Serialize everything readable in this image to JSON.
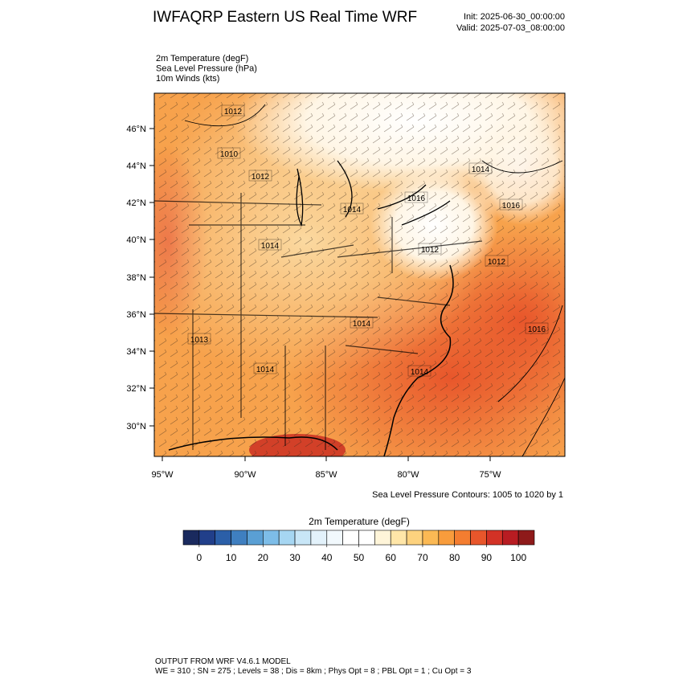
{
  "header": {
    "title": "IWFAQRP Eastern US Real Time WRF",
    "init": "Init: 2025-06-30_00:00:00",
    "valid": "Valid: 2025-07-03_08:00:00"
  },
  "fields": [
    "2m Temperature   (degF)",
    "Sea Level Pressure   (hPa)",
    "10m Winds   (kts)"
  ],
  "map": {
    "lat_labels": [
      "46°N",
      "44°N",
      "42°N",
      "40°N",
      "38°N",
      "36°N",
      "34°N",
      "32°N",
      "30°N"
    ],
    "lon_labels": [
      "95°W",
      "90°W",
      "85°W",
      "80°W",
      "75°W"
    ],
    "contour_labels": [
      "1012",
      "1010",
      "1012",
      "1014",
      "1014",
      "1016",
      "1016",
      "1012",
      "1012",
      "1016",
      "1013",
      "1014",
      "1014",
      "1014",
      "1014"
    ],
    "contour_note": "Sea Level Pressure Contours: 1005 to 1020 by 1"
  },
  "colorbar": {
    "title": "2m Temperature  (degF)",
    "lim": [
      -5,
      105
    ],
    "ticks": [
      0,
      10,
      20,
      30,
      40,
      50,
      60,
      70,
      80,
      90,
      100
    ],
    "colors": [
      "#1a2a5e",
      "#213f8a",
      "#2b5fa8",
      "#3f7fc0",
      "#5a9fd4",
      "#7dbde8",
      "#a6d6f2",
      "#c8e6f7",
      "#e3f2fb",
      "#f2f9fd",
      "#ffffff",
      "#ffffff",
      "#fff5d9",
      "#ffe6a8",
      "#fdd27e",
      "#fbb954",
      "#f89c3c",
      "#f47d30",
      "#e8562b",
      "#d33226",
      "#b81c22",
      "#8e1a1a"
    ]
  },
  "footer": {
    "model": "OUTPUT FROM WRF V4.6.1 MODEL",
    "config": "WE = 310 ; SN = 275 ; Levels = 38 ; Dis = 8km ; Phys Opt = 8 ; PBL Opt = 1 ; Cu Opt = 3"
  }
}
